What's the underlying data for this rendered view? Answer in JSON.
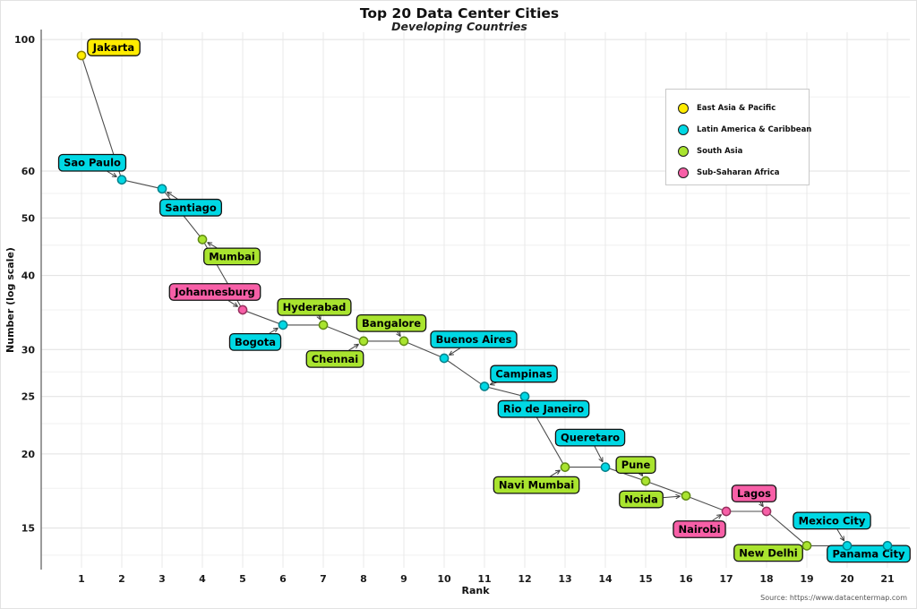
{
  "chart_data": {
    "type": "scatter",
    "title": "Top 20 Data Center Cities",
    "subtitle": "Developing Countries",
    "source": "Source: https://www.datacentermap.com",
    "xlabel": "Rank",
    "ylabel": "Number (log scale)",
    "y_scale": "log",
    "xlim": [
      0,
      22
    ],
    "ylim": [
      13,
      105
    ],
    "grid": true,
    "x_ticks": [
      1,
      2,
      3,
      4,
      5,
      6,
      7,
      8,
      9,
      10,
      11,
      12,
      13,
      14,
      15,
      16,
      17,
      18,
      19,
      20,
      21
    ],
    "y_major_ticks": [
      100,
      60,
      50,
      40,
      30,
      25,
      20,
      15
    ],
    "y_minor_gridlines": [
      80,
      55,
      45,
      35,
      27.5,
      22.5,
      17.5,
      13.5
    ],
    "legend_position": "top-right",
    "regions": [
      {
        "name": "East Asia & Pacific",
        "color": "#ffec00",
        "stroke": "#8f8500"
      },
      {
        "name": "Latin America & Caribbean",
        "color": "#00d8e4",
        "stroke": "#00808a"
      },
      {
        "name": "South Asia",
        "color": "#a9e42f",
        "stroke": "#5f8a12"
      },
      {
        "name": "Sub-Saharan Africa",
        "color": "#f75fa7",
        "stroke": "#97305e"
      }
    ],
    "points": [
      {
        "rank": 1,
        "city": "Jakarta",
        "value": 94,
        "region": "East Asia & Pacific",
        "label_offset": [
          36,
          -9
        ]
      },
      {
        "rank": 2,
        "city": "Sao Paulo",
        "value": 58,
        "region": "Latin America & Caribbean",
        "label_offset": [
          -33,
          -19
        ]
      },
      {
        "rank": 3,
        "city": "Santiago",
        "value": 56,
        "region": "Latin America & Caribbean",
        "label_offset": [
          32,
          21
        ]
      },
      {
        "rank": 4,
        "city": "Mumbai",
        "value": 46,
        "region": "South Asia",
        "label_offset": [
          33,
          19
        ]
      },
      {
        "rank": 5,
        "city": "Johannesburg",
        "value": 35,
        "region": "Sub-Saharan Africa",
        "label_offset": [
          -31,
          -20
        ]
      },
      {
        "rank": 6,
        "city": "Bogota",
        "value": 33,
        "region": "Latin America & Caribbean",
        "label_offset": [
          -31,
          19
        ]
      },
      {
        "rank": 7,
        "city": "Hyderabad",
        "value": 33,
        "region": "South Asia",
        "label_offset": [
          -10,
          -20
        ]
      },
      {
        "rank": 8,
        "city": "Chennai",
        "value": 31,
        "region": "South Asia",
        "label_offset": [
          -32,
          20
        ]
      },
      {
        "rank": 9,
        "city": "Bangalore",
        "value": 31,
        "region": "South Asia",
        "label_offset": [
          -14,
          -20
        ]
      },
      {
        "rank": 10,
        "city": "Buenos Aires",
        "value": 29,
        "region": "Latin America & Caribbean",
        "label_offset": [
          33,
          -21
        ]
      },
      {
        "rank": 11,
        "city": "Campinas",
        "value": 26,
        "region": "Latin America & Caribbean",
        "label_offset": [
          44,
          -14
        ]
      },
      {
        "rank": 12,
        "city": "Rio de Janeiro",
        "value": 25,
        "region": "Latin America & Caribbean",
        "label_offset": [
          21,
          14
        ]
      },
      {
        "rank": 13,
        "city": "Navi Mumbai",
        "value": 19,
        "region": "South Asia",
        "label_offset": [
          -32,
          20
        ]
      },
      {
        "rank": 14,
        "city": "Queretaro",
        "value": 19,
        "region": "Latin America & Caribbean",
        "label_offset": [
          -17,
          -33
        ]
      },
      {
        "rank": 15,
        "city": "Pune",
        "value": 18,
        "region": "South Asia",
        "label_offset": [
          -11,
          -18
        ]
      },
      {
        "rank": 16,
        "city": "Noida",
        "value": 17,
        "region": "South Asia",
        "label_offset": [
          -50,
          4
        ]
      },
      {
        "rank": 17,
        "city": "Nairobi",
        "value": 16,
        "region": "Sub-Saharan Africa",
        "label_offset": [
          -30,
          20
        ]
      },
      {
        "rank": 18,
        "city": "Lagos",
        "value": 16,
        "region": "Sub-Saharan Africa",
        "label_offset": [
          -14,
          -20
        ]
      },
      {
        "rank": 19,
        "city": "New Delhi",
        "value": 14,
        "region": "South Asia",
        "label_offset": [
          -43,
          8
        ]
      },
      {
        "rank": 20,
        "city": "Mexico City",
        "value": 14,
        "region": "Latin America & Caribbean",
        "label_offset": [
          -17,
          -28
        ]
      },
      {
        "rank": 21,
        "city": "Panama City",
        "value": 14,
        "region": "Latin America & Caribbean",
        "label_offset": [
          -21,
          9
        ]
      }
    ]
  }
}
